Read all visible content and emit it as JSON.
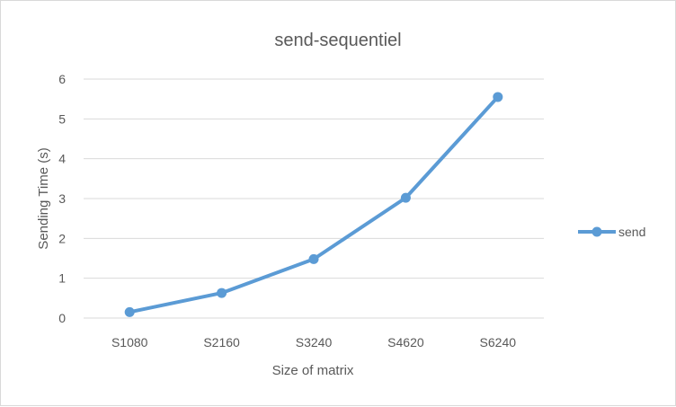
{
  "chart_data": {
    "type": "line",
    "title": "send-sequentiel",
    "xlabel": "Size of matrix",
    "ylabel": "Sending Time (s)",
    "categories": [
      "S1080",
      "S2160",
      "S3240",
      "S4620",
      "S6240"
    ],
    "series": [
      {
        "name": "send",
        "values": [
          0.15,
          0.63,
          1.48,
          3.02,
          5.55
        ],
        "color": "#5b9bd5"
      }
    ],
    "ylim": [
      0,
      6
    ],
    "yticks": [
      "0",
      "1",
      "2",
      "3",
      "4",
      "5",
      "6"
    ],
    "grid": true,
    "legend_position": "right"
  }
}
